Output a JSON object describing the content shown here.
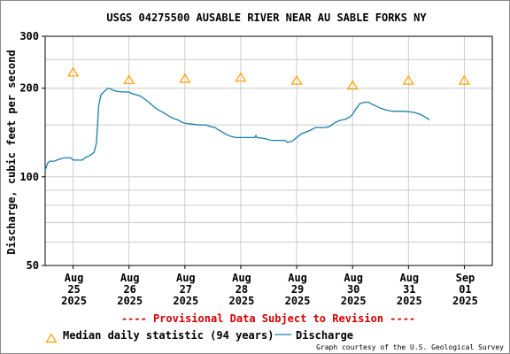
{
  "chart_data": {
    "type": "line",
    "title": "USGS 04275500 AUSABLE RIVER NEAR AU SABLE FORKS NY",
    "ylabel": "Discharge, cubic feet per second",
    "xlabel": "",
    "y_scale": "log",
    "ylim": [
      50,
      300
    ],
    "y_ticks": [
      "300",
      "200",
      "100",
      "50"
    ],
    "y_tick_values": [
      300,
      200,
      100,
      50
    ],
    "y_minor_gridlines": [
      60,
      70,
      80,
      90,
      150,
      250
    ],
    "x_range": [
      "2025-08-24T12:00",
      "2025-09-01T12:00"
    ],
    "x_ticks": [
      {
        "time": "2025-08-25T00:00",
        "month": "Aug",
        "day": "25",
        "year": "2025"
      },
      {
        "time": "2025-08-26T00:00",
        "month": "Aug",
        "day": "26",
        "year": "2025"
      },
      {
        "time": "2025-08-27T00:00",
        "month": "Aug",
        "day": "27",
        "year": "2025"
      },
      {
        "time": "2025-08-28T00:00",
        "month": "Aug",
        "day": "28",
        "year": "2025"
      },
      {
        "time": "2025-08-29T00:00",
        "month": "Aug",
        "day": "29",
        "year": "2025"
      },
      {
        "time": "2025-08-30T00:00",
        "month": "Aug",
        "day": "30",
        "year": "2025"
      },
      {
        "time": "2025-08-31T00:00",
        "month": "Aug",
        "day": "31",
        "year": "2025"
      },
      {
        "time": "2025-09-01T00:00",
        "month": "Sep",
        "day": "01",
        "year": "2025"
      }
    ],
    "grid": true,
    "series": [
      {
        "name": "Discharge",
        "color": "#1a7fa8",
        "points": [
          [
            "2025-08-24T12:00",
            105
          ],
          [
            "2025-08-24T13:00",
            111
          ],
          [
            "2025-08-24T14:00",
            113
          ],
          [
            "2025-08-24T16:00",
            113
          ],
          [
            "2025-08-24T17:00",
            114
          ],
          [
            "2025-08-24T20:00",
            116
          ],
          [
            "2025-08-24T23:00",
            116
          ],
          [
            "2025-08-25T00:00",
            114
          ],
          [
            "2025-08-25T04:00",
            114
          ],
          [
            "2025-08-25T05:00",
            116
          ],
          [
            "2025-08-25T07:00",
            118
          ],
          [
            "2025-08-25T09:00",
            121
          ],
          [
            "2025-08-25T10:00",
            130
          ],
          [
            "2025-08-25T11:00",
            175
          ],
          [
            "2025-08-25T12:00",
            190
          ],
          [
            "2025-08-25T14:00",
            197
          ],
          [
            "2025-08-25T15:00",
            200
          ],
          [
            "2025-08-25T16:00",
            199
          ],
          [
            "2025-08-25T17:00",
            197
          ],
          [
            "2025-08-25T19:00",
            195
          ],
          [
            "2025-08-25T22:00",
            194
          ],
          [
            "2025-08-26T00:00",
            194
          ],
          [
            "2025-08-26T01:00",
            192
          ],
          [
            "2025-08-26T03:00",
            190
          ],
          [
            "2025-08-26T05:00",
            188
          ],
          [
            "2025-08-26T07:00",
            183
          ],
          [
            "2025-08-26T09:00",
            178
          ],
          [
            "2025-08-26T11:00",
            172
          ],
          [
            "2025-08-26T13:00",
            168
          ],
          [
            "2025-08-26T15:00",
            165
          ],
          [
            "2025-08-26T17:00",
            161
          ],
          [
            "2025-08-26T19:00",
            158
          ],
          [
            "2025-08-26T21:00",
            156
          ],
          [
            "2025-08-26T23:00",
            153
          ],
          [
            "2025-08-27T00:00",
            152
          ],
          [
            "2025-08-27T03:00",
            151
          ],
          [
            "2025-08-27T06:00",
            150
          ],
          [
            "2025-08-27T09:00",
            150
          ],
          [
            "2025-08-27T11:00",
            148
          ],
          [
            "2025-08-27T13:00",
            147
          ],
          [
            "2025-08-27T14:00",
            145
          ],
          [
            "2025-08-27T16:00",
            142
          ],
          [
            "2025-08-27T18:00",
            139
          ],
          [
            "2025-08-27T20:00",
            137
          ],
          [
            "2025-08-27T22:00",
            136
          ],
          [
            "2025-08-28T00:00",
            136
          ],
          [
            "2025-08-28T04:00",
            136
          ],
          [
            "2025-08-28T06:00",
            136
          ],
          [
            "2025-08-28T06:30",
            138
          ],
          [
            "2025-08-28T07:00",
            136
          ],
          [
            "2025-08-28T10:00",
            135
          ],
          [
            "2025-08-28T13:00",
            133
          ],
          [
            "2025-08-28T16:00",
            133
          ],
          [
            "2025-08-28T19:00",
            133
          ],
          [
            "2025-08-28T20:00",
            131
          ],
          [
            "2025-08-28T22:00",
            132
          ],
          [
            "2025-08-29T00:00",
            136
          ],
          [
            "2025-08-29T02:00",
            140
          ],
          [
            "2025-08-29T04:00",
            142
          ],
          [
            "2025-08-29T06:00",
            144
          ],
          [
            "2025-08-29T08:00",
            147
          ],
          [
            "2025-08-29T12:00",
            147
          ],
          [
            "2025-08-29T14:00",
            148
          ],
          [
            "2025-08-29T16:00",
            152
          ],
          [
            "2025-08-29T18:00",
            155
          ],
          [
            "2025-08-29T21:00",
            157
          ],
          [
            "2025-08-29T23:00",
            160
          ],
          [
            "2025-08-30T00:00",
            163
          ],
          [
            "2025-08-30T01:00",
            168
          ],
          [
            "2025-08-30T02:00",
            172
          ],
          [
            "2025-08-30T03:00",
            177
          ],
          [
            "2025-08-30T05:00",
            179
          ],
          [
            "2025-08-30T07:00",
            179
          ],
          [
            "2025-08-30T08:00",
            177
          ],
          [
            "2025-08-30T10:00",
            174
          ],
          [
            "2025-08-30T12:00",
            171
          ],
          [
            "2025-08-30T14:00",
            169
          ],
          [
            "2025-08-30T17:00",
            167
          ],
          [
            "2025-08-30T22:00",
            167
          ],
          [
            "2025-08-31T01:00",
            166
          ],
          [
            "2025-08-31T03:00",
            165
          ],
          [
            "2025-08-31T05:00",
            163
          ],
          [
            "2025-08-31T07:00",
            160
          ],
          [
            "2025-08-31T08:00",
            158
          ],
          [
            "2025-08-31T09:00",
            156
          ]
        ]
      },
      {
        "name": "Median daily statistic (94 years)",
        "marker": "triangle",
        "color": "#ffa000",
        "points": [
          [
            "2025-08-25T00:00",
            227
          ],
          [
            "2025-08-26T00:00",
            214
          ],
          [
            "2025-08-27T00:00",
            216
          ],
          [
            "2025-08-28T00:00",
            218
          ],
          [
            "2025-08-29T00:00",
            213
          ],
          [
            "2025-08-30T00:00",
            205
          ],
          [
            "2025-08-31T00:00",
            213
          ],
          [
            "2025-09-01T00:00",
            213
          ]
        ]
      }
    ],
    "provisional_note": "---- Provisional Data Subject to Revision ----",
    "credit": "Graph courtesy of the U.S. Geological Survey",
    "legend_position": "bottom"
  },
  "colors": {
    "plot_border": "#000000",
    "grid": "#cccccc",
    "discharge": "#1a7fa8",
    "median": "#ffa000",
    "provisional": "#d40000",
    "text": "#000000"
  }
}
